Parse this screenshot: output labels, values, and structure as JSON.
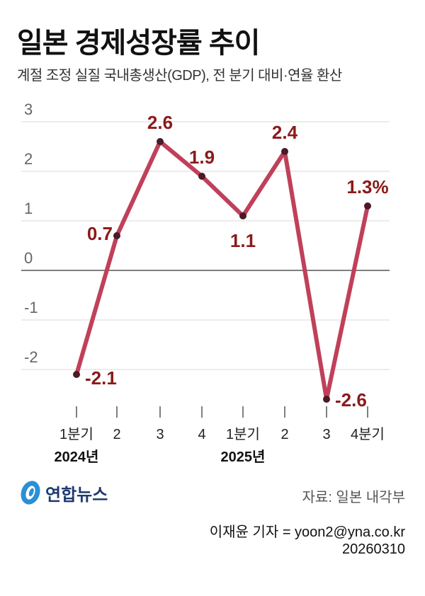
{
  "title": "일본 경제성장률 추이",
  "subtitle": "계절 조정 실질 국내총생산(GDP), 전 분기 대비·연율 환산",
  "chart_data": {
    "type": "line",
    "categories": [
      "1분기",
      "2",
      "3",
      "4",
      "1분기",
      "2",
      "3",
      "4분기"
    ],
    "year_labels": [
      {
        "label": "2024년",
        "index": 0
      },
      {
        "label": "2025년",
        "index": 4
      }
    ],
    "values": [
      -2.1,
      0.7,
      2.6,
      1.9,
      1.1,
      2.4,
      -2.6,
      1.3
    ],
    "data_labels": [
      "-2.1",
      "0.7",
      "2.6",
      "1.9",
      "1.1",
      "2.4",
      "-2.6",
      "1.3%"
    ],
    "yticks": [
      3,
      2,
      1,
      0,
      -1,
      -2
    ],
    "ylim": [
      -2.9,
      3.15
    ],
    "grid": true,
    "colors": {
      "line": "#c0405a",
      "marker": "#4a1a28",
      "label": "#8b1a1a",
      "grid": "#d9d9d9",
      "zero": "#555555"
    }
  },
  "logo": {
    "text": "연합뉴스"
  },
  "source": "자료: 일본 내각부",
  "credit": {
    "reporter": "이재윤 기자 = yoon2@yna.co.kr",
    "date": "20260310"
  }
}
